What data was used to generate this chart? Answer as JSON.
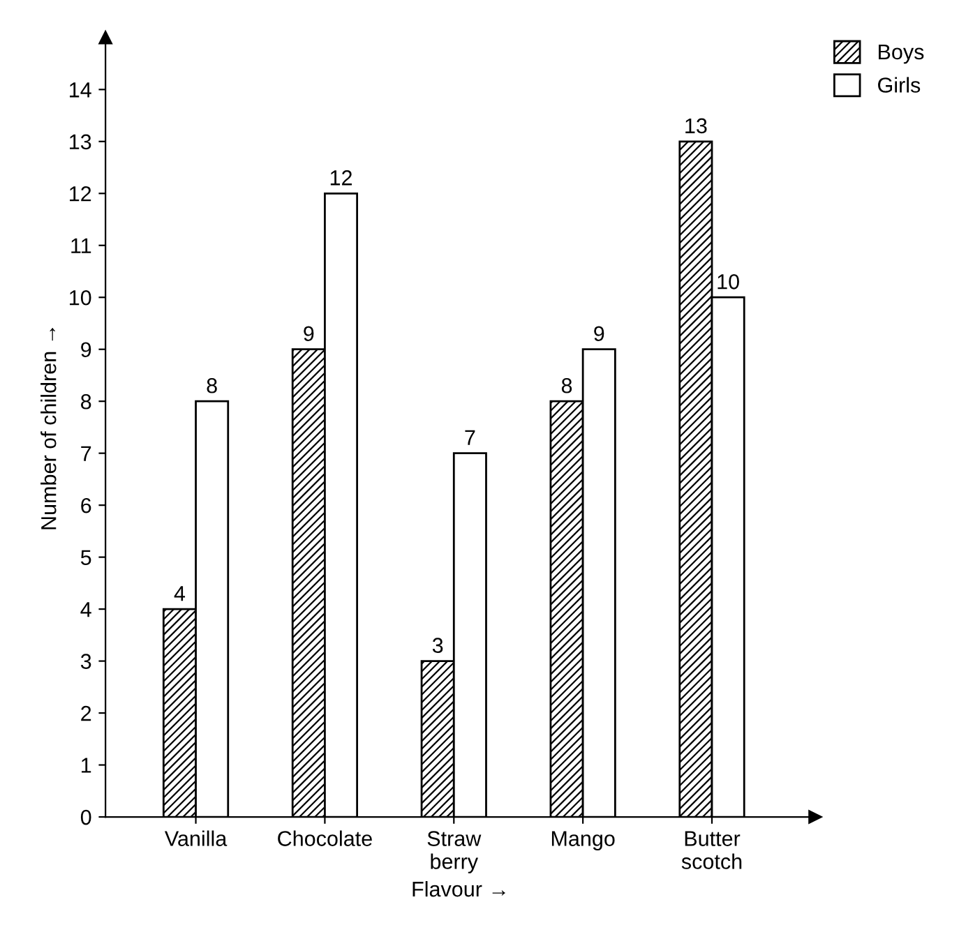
{
  "chart_data": {
    "type": "bar",
    "xlabel": "Flavour →",
    "ylabel": "Number of children →",
    "categories": [
      "Vanilla",
      "Chocolate",
      "Straw\nberry",
      "Mango",
      "Butter\nscotch"
    ],
    "series": [
      {
        "name": "Boys",
        "color": "#000000",
        "values": [
          4,
          9,
          3,
          8,
          13
        ]
      },
      {
        "name": "Girls",
        "color": "#ffffff",
        "values": [
          8,
          12,
          7,
          9,
          10
        ]
      }
    ],
    "ylim": [
      0,
      15
    ],
    "yticks": [
      0,
      1,
      2,
      3,
      4,
      5,
      6,
      7,
      8,
      9,
      10,
      11,
      12,
      13,
      14
    ],
    "grid": false,
    "legend": "top right",
    "data_labels": true
  }
}
